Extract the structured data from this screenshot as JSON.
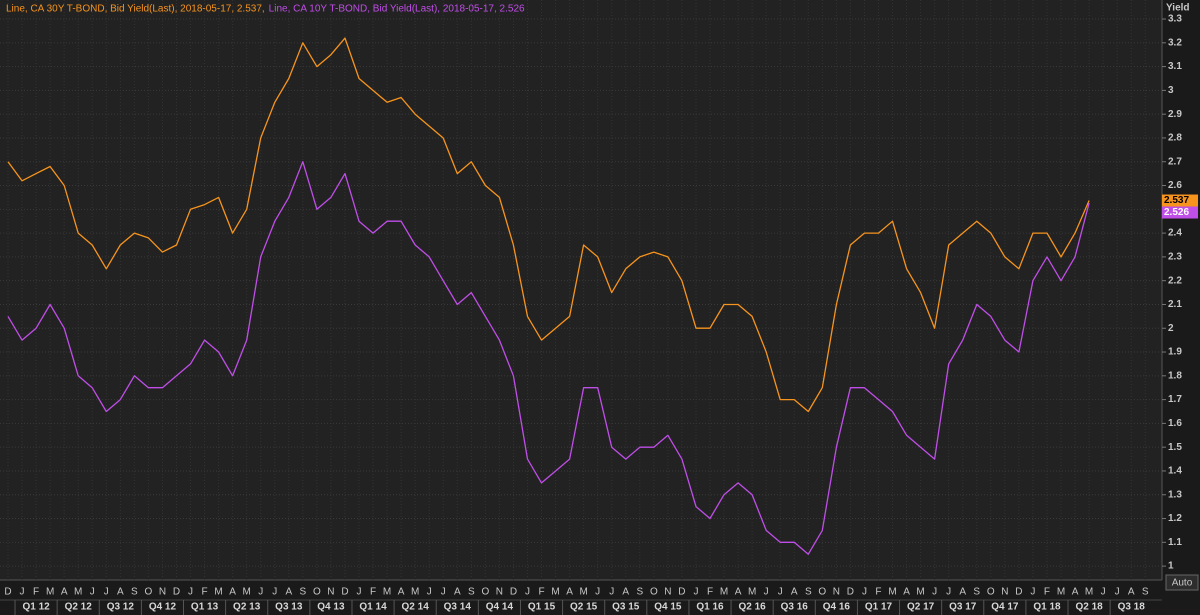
{
  "chart_data": {
    "type": "line",
    "y_axis_label": "Yield",
    "button": "Auto",
    "categories": [
      "D",
      "J",
      "F",
      "M",
      "A",
      "M",
      "J",
      "J",
      "A",
      "S",
      "O",
      "N",
      "D",
      "J",
      "F",
      "M",
      "A",
      "M",
      "J",
      "J",
      "A",
      "S",
      "O",
      "N",
      "D",
      "J",
      "F",
      "M",
      "A",
      "M",
      "J",
      "J",
      "A",
      "S",
      "O",
      "N",
      "D",
      "J",
      "F",
      "M",
      "A",
      "M",
      "J",
      "J",
      "A",
      "S",
      "O",
      "N",
      "D",
      "J",
      "F",
      "M",
      "A",
      "M",
      "J",
      "J",
      "A",
      "S",
      "O",
      "N",
      "D",
      "J",
      "F",
      "M",
      "A",
      "M",
      "J",
      "J",
      "A",
      "S",
      "O",
      "N",
      "D",
      "J",
      "F",
      "M",
      "A",
      "M",
      "J",
      "J",
      "A",
      "S"
    ],
    "quarters": [
      "Q1 12",
      "Q2 12",
      "Q3 12",
      "Q4 12",
      "Q1 13",
      "Q2 13",
      "Q3 13",
      "Q4 13",
      "Q1 14",
      "Q2 14",
      "Q3 14",
      "Q4 14",
      "Q1 15",
      "Q2 15",
      "Q3 15",
      "Q4 15",
      "Q1 16",
      "Q2 16",
      "Q3 16",
      "Q4 16",
      "Q1 17",
      "Q2 17",
      "Q3 17",
      "Q4 17",
      "Q1 18",
      "Q2 18",
      "Q3 18"
    ],
    "series": [
      {
        "name": "Line, CA 30Y T-BOND, Bid Yield(Last), 2018-05-17, 2.537,",
        "color": "#f7941d",
        "values": [
          2.7,
          2.62,
          2.65,
          2.68,
          2.6,
          2.4,
          2.35,
          2.25,
          2.35,
          2.4,
          2.38,
          2.32,
          2.35,
          2.5,
          2.52,
          2.55,
          2.4,
          2.5,
          2.8,
          2.95,
          3.05,
          3.2,
          3.1,
          3.15,
          3.22,
          3.05,
          3.0,
          2.95,
          2.97,
          2.9,
          2.85,
          2.8,
          2.65,
          2.7,
          2.6,
          2.55,
          2.35,
          2.05,
          1.95,
          2.0,
          2.05,
          2.35,
          2.3,
          2.15,
          2.25,
          2.3,
          2.32,
          2.3,
          2.2,
          2.0,
          2.0,
          2.1,
          2.1,
          2.05,
          1.9,
          1.7,
          1.7,
          1.65,
          1.75,
          2.1,
          2.35,
          2.4,
          2.4,
          2.45,
          2.25,
          2.15,
          2.0,
          2.35,
          2.4,
          2.45,
          2.4,
          2.3,
          2.25,
          2.4,
          2.4,
          2.3,
          2.4,
          2.537,
          null,
          null,
          null,
          null
        ]
      },
      {
        "name": "Line, CA 10Y T-BOND, Bid Yield(Last), 2018-05-17, 2.526",
        "color": "#c04ee8",
        "values": [
          2.05,
          1.95,
          2.0,
          2.1,
          2.0,
          1.8,
          1.75,
          1.65,
          1.7,
          1.8,
          1.75,
          1.75,
          1.8,
          1.85,
          1.95,
          1.9,
          1.8,
          1.95,
          2.3,
          2.45,
          2.55,
          2.7,
          2.5,
          2.55,
          2.65,
          2.45,
          2.4,
          2.45,
          2.45,
          2.35,
          2.3,
          2.2,
          2.1,
          2.15,
          2.05,
          1.95,
          1.8,
          1.45,
          1.35,
          1.4,
          1.45,
          1.75,
          1.75,
          1.5,
          1.45,
          1.5,
          1.5,
          1.55,
          1.45,
          1.25,
          1.2,
          1.3,
          1.35,
          1.3,
          1.15,
          1.1,
          1.1,
          1.05,
          1.15,
          1.5,
          1.75,
          1.75,
          1.7,
          1.65,
          1.55,
          1.5,
          1.45,
          1.85,
          1.95,
          2.1,
          2.05,
          1.95,
          1.9,
          2.2,
          2.3,
          2.2,
          2.3,
          2.526,
          null,
          null,
          null,
          null
        ]
      }
    ],
    "ylim": [
      0.95,
      3.38
    ],
    "yticks": [
      1,
      1.1,
      1.2,
      1.3,
      1.4,
      1.5,
      1.6,
      1.7,
      1.8,
      1.9,
      2,
      2.1,
      2.2,
      2.3,
      2.4,
      2.5,
      2.6,
      2.7,
      2.8,
      2.9,
      3,
      3.1,
      3.2,
      3.3
    ],
    "grid": true
  }
}
